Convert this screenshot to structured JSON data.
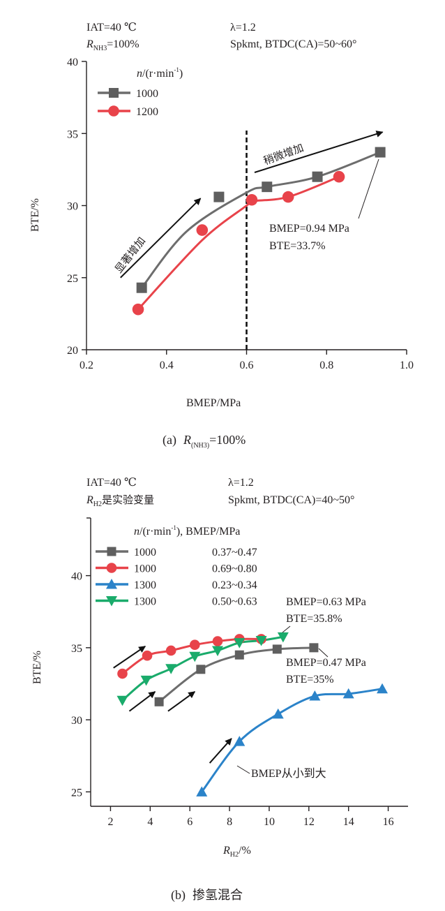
{
  "chart_data": [
    {
      "id": "a",
      "type": "line",
      "caption": {
        "label": "(a)",
        "var": "R",
        "sub": "(NH3)",
        "rest": "=100%"
      },
      "header": {
        "left_line1": "IAT=40 ℃",
        "left_line2_var": "R",
        "left_line2_sub": "NH3",
        "left_line2_rest": "=100%",
        "right_line1": "λ=1.2",
        "right_line2": "Spkmt, BTDC(CA)=50~60°"
      },
      "xlabel": "BMEP/MPa",
      "ylabel": "BTE/%",
      "xlim": [
        0.2,
        1.0
      ],
      "ylim": [
        20,
        40
      ],
      "xticks": [
        "0.2",
        "0.4",
        "0.6",
        "0.8",
        "1.0"
      ],
      "xtick_values": [
        0.2,
        0.4,
        0.6,
        0.8,
        1.0
      ],
      "yticks": [
        "20",
        "25",
        "30",
        "35",
        "40"
      ],
      "ytick_values": [
        20,
        25,
        30,
        35,
        40
      ],
      "grid": false,
      "legend": {
        "title_var": "n",
        "title_rest": "/(r·min",
        "title_sup": "-1",
        "title_end": ")",
        "placement": "top-left"
      },
      "series": [
        {
          "name": "1000",
          "color": "#5f5f5f",
          "line_color": "#6d6d6d",
          "marker": "square",
          "x": [
            0.338,
            0.531,
            0.651,
            0.777,
            0.934
          ],
          "y": [
            24.3,
            30.6,
            31.3,
            32.0,
            33.7
          ],
          "curve": [
            [
              0.338,
              24.3
            ],
            [
              0.45,
              28.2
            ],
            [
              0.6,
              30.9
            ],
            [
              0.651,
              31.3
            ],
            [
              0.777,
              32.0
            ],
            [
              0.934,
              33.7
            ]
          ]
        },
        {
          "name": "1200",
          "color": "#e8434a",
          "line_color": "#e8434a",
          "marker": "circle",
          "x": [
            0.329,
            0.489,
            0.613,
            0.704,
            0.831
          ],
          "y": [
            22.8,
            28.3,
            30.4,
            30.6,
            32.0
          ],
          "curve": [
            [
              0.329,
              22.8
            ],
            [
              0.489,
              27.6
            ],
            [
              0.6,
              30.0
            ],
            [
              0.613,
              30.3
            ],
            [
              0.704,
              30.6
            ],
            [
              0.831,
              32.0
            ]
          ]
        }
      ],
      "vline": {
        "x": 0.6,
        "style": "dashed"
      },
      "annotations": [
        {
          "text": "显著增加",
          "kind": "arrow-label",
          "arrow_from": [
            0.285,
            25.0
          ],
          "arrow_to": [
            0.485,
            30.5
          ]
        },
        {
          "text": "稍微增加",
          "kind": "arrow-label",
          "arrow_from": [
            0.62,
            32.3
          ],
          "arrow_to": [
            0.94,
            35.1
          ]
        },
        {
          "line1": "BMEP=0.94 MPa",
          "line2": "BTE=33.7%",
          "kind": "callout",
          "point": [
            0.934,
            33.7
          ]
        }
      ]
    },
    {
      "id": "b",
      "type": "line",
      "caption": {
        "label": "(b)",
        "text": "掺氢混合"
      },
      "header": {
        "left_line1": "IAT=40 ℃",
        "left_line2_var": "R",
        "left_line2_sub": "H2",
        "left_line2_rest": "是实验变量",
        "right_line1": "λ=1.2",
        "right_line2": "Spkmt, BTDC(CA)=40~50°"
      },
      "xlabel_var": "R",
      "xlabel_sub": "H2",
      "xlabel_rest": "/%",
      "ylabel": "BTE/%",
      "xlim": [
        1,
        17
      ],
      "ylim": [
        24,
        44
      ],
      "xticks": [
        "2",
        "4",
        "6",
        "8",
        "10",
        "12",
        "14",
        "16"
      ],
      "xtick_values": [
        2,
        4,
        6,
        8,
        10,
        12,
        14,
        16
      ],
      "yticks": [
        "25",
        "30",
        "35",
        "40"
      ],
      "ytick_values": [
        25,
        30,
        35,
        40
      ],
      "grid": false,
      "legend": {
        "title_var": "n",
        "title_rest": "/(r·min",
        "title_sup": "-1",
        "title_end": "), BMEP/MPa",
        "placement": "top-left"
      },
      "series": [
        {
          "name": "1000",
          "bmep": "0.37~0.47",
          "color": "#5f5f5f",
          "line_color": "#6d6d6d",
          "marker": "square",
          "x": [
            4.45,
            6.55,
            8.5,
            10.4,
            12.25
          ],
          "y": [
            31.25,
            33.5,
            34.5,
            34.9,
            35.0
          ]
        },
        {
          "name": "1000",
          "bmep": "0.69~0.80",
          "color": "#e8434a",
          "line_color": "#e8434a",
          "marker": "circle",
          "x": [
            2.6,
            3.85,
            5.05,
            6.25,
            7.4,
            8.5,
            9.6
          ],
          "y": [
            33.2,
            34.45,
            34.8,
            35.2,
            35.45,
            35.6,
            35.6
          ]
        },
        {
          "name": "1300",
          "bmep": "0.23~0.34",
          "color": "#2b83c9",
          "line_color": "#2b83c9",
          "marker": "triangle-up",
          "x": [
            6.6,
            8.5,
            10.45,
            12.3,
            14.0,
            15.7
          ],
          "y": [
            25.0,
            28.5,
            30.4,
            31.65,
            31.8,
            32.15
          ]
        },
        {
          "name": "1300",
          "bmep": "0.50~0.63",
          "color": "#1aab6b",
          "line_color": "#1aab6b",
          "marker": "triangle-down",
          "x": [
            2.6,
            3.8,
            5.05,
            6.25,
            7.4,
            8.5,
            9.6,
            10.7
          ],
          "y": [
            31.35,
            32.75,
            33.55,
            34.4,
            34.8,
            35.35,
            35.5,
            35.75
          ]
        }
      ],
      "annotations": [
        {
          "line1": "BMEP=0.63 MPa",
          "line2": "BTE=35.8%",
          "kind": "callout",
          "point": [
            10.7,
            35.75
          ]
        },
        {
          "line1": "BMEP=0.47 MPa",
          "line2": "BTE=35%",
          "kind": "callout",
          "point": [
            12.25,
            35.0
          ]
        },
        {
          "text": "BMEP从小到大",
          "kind": "arrow-label"
        }
      ],
      "arrows": [
        {
          "from": [
            2.15,
            33.6
          ],
          "to": [
            3.75,
            35.1
          ]
        },
        {
          "from": [
            2.95,
            30.6
          ],
          "to": [
            4.25,
            31.95
          ]
        },
        {
          "from": [
            4.9,
            30.6
          ],
          "to": [
            6.25,
            31.95
          ]
        },
        {
          "from": [
            7.0,
            27.0
          ],
          "to": [
            8.1,
            28.7
          ]
        }
      ]
    }
  ]
}
